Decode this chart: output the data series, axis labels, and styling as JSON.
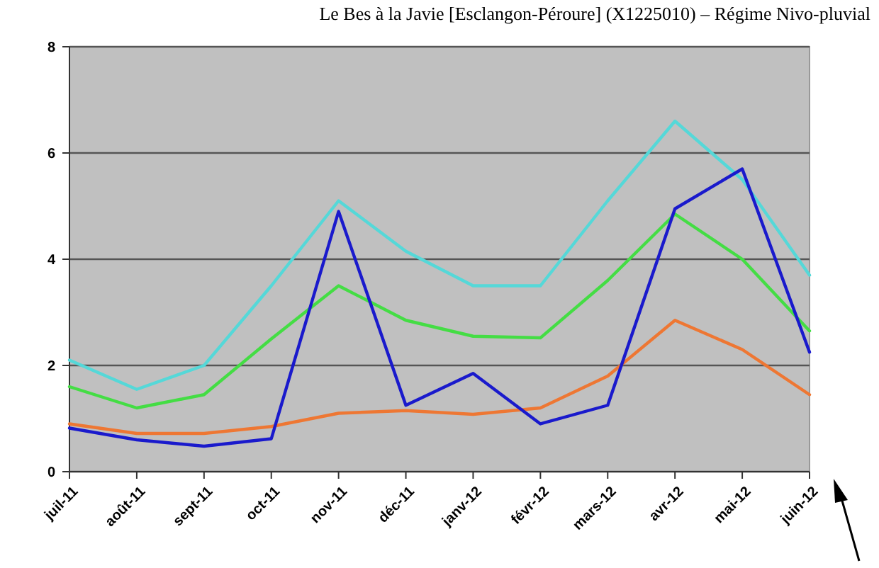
{
  "chart_data": {
    "type": "line",
    "title": "Le Bes à la Javie [Esclangon-Péroure] (X1225010) – Régime Nivo-pluvial",
    "categories": [
      "juil-11",
      "août-11",
      "sept-11",
      "oct-11",
      "nov-11",
      "déc-11",
      "janv-12",
      "févr-12",
      "mars-12",
      "avr-12",
      "mai-12",
      "juin-12"
    ],
    "series": [
      {
        "color": "#55d8d8",
        "values": [
          2.1,
          1.55,
          2.0,
          3.5,
          5.1,
          4.15,
          3.5,
          3.5,
          5.1,
          6.6,
          5.5,
          3.7
        ]
      },
      {
        "color": "#44dd44",
        "values": [
          1.6,
          1.2,
          1.45,
          2.5,
          3.5,
          2.85,
          2.55,
          2.52,
          3.6,
          4.85,
          4.0,
          2.65
        ]
      },
      {
        "color": "#ee7733",
        "values": [
          0.9,
          0.72,
          0.72,
          0.85,
          1.1,
          1.15,
          1.08,
          1.2,
          1.8,
          2.85,
          2.3,
          1.45
        ]
      },
      {
        "color": "#1a1acc",
        "values": [
          0.82,
          0.6,
          0.48,
          0.62,
          4.9,
          1.25,
          1.85,
          0.9,
          1.25,
          4.95,
          5.7,
          2.25
        ]
      }
    ],
    "ylim": [
      0,
      8
    ],
    "yticks": [
      0,
      2,
      4,
      6,
      8
    ],
    "grid": "y",
    "marker": "none",
    "line_style": "solid"
  }
}
